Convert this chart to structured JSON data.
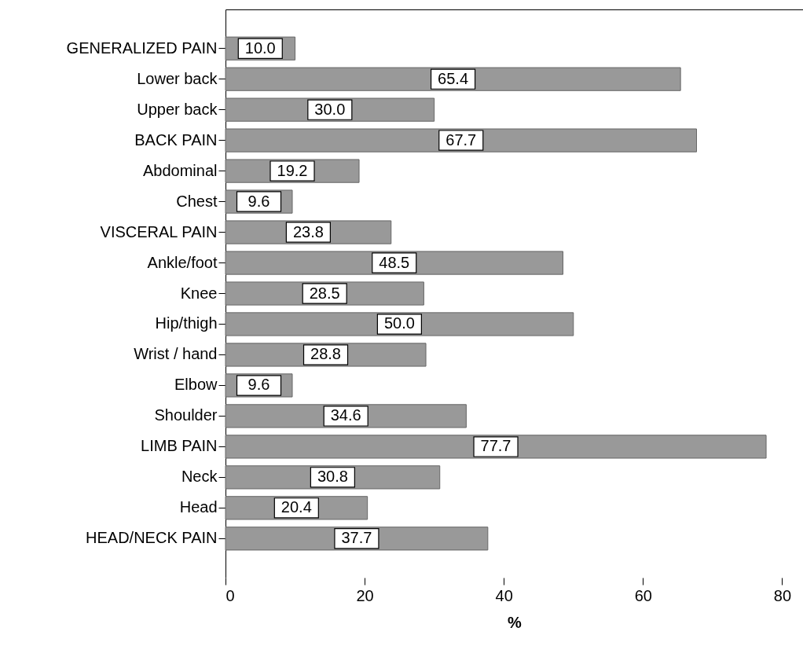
{
  "chart_data": {
    "type": "bar",
    "orientation": "horizontal",
    "xlabel": "%",
    "categories": [
      "GENERALIZED PAIN",
      "Lower back",
      "Upper back",
      "BACK PAIN",
      "Abdominal",
      "Chest",
      "VISCERAL PAIN",
      "Ankle/foot",
      "Knee",
      "Hip/thigh",
      "Wrist / hand",
      "Elbow",
      "Shoulder",
      "LIMB PAIN",
      "Neck",
      "Head",
      "HEAD/NECK PAIN"
    ],
    "values": [
      10.0,
      65.4,
      30.0,
      67.7,
      19.2,
      9.6,
      23.8,
      48.5,
      28.5,
      50.0,
      28.8,
      9.6,
      34.6,
      77.7,
      30.8,
      20.4,
      37.7
    ],
    "value_labels": [
      "10.0",
      "65.4",
      "30.0",
      "67.7",
      "19.2",
      "9.6",
      "23.8",
      "48.5",
      "28.5",
      "50.0",
      "28.8",
      "9.6",
      "34.6",
      "77.7",
      "30.8",
      "20.4",
      "37.7"
    ],
    "color": "#999999",
    "grid": false,
    "xlim": [
      0,
      83
    ],
    "xticks": [
      0,
      20,
      40,
      60,
      80
    ]
  }
}
